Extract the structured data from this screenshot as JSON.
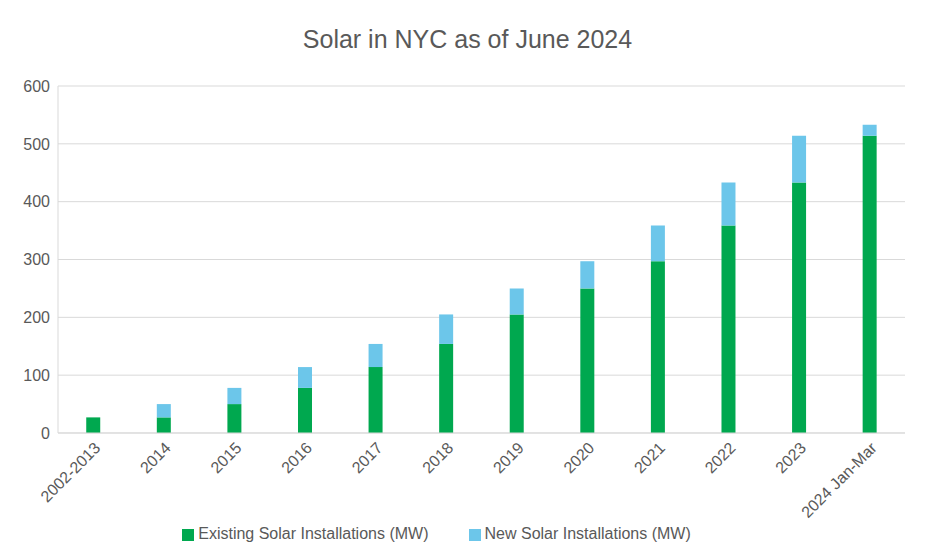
{
  "chart_data": {
    "type": "bar",
    "title": "Solar in NYC as of June 2024",
    "categories": [
      "2002-2013",
      "2014",
      "2015",
      "2016",
      "2017",
      "2018",
      "2019",
      "2020",
      "2021",
      "2022",
      "2023",
      "2024 Jan-Mar"
    ],
    "series": [
      {
        "name": "Existing Solar Installations (MW)",
        "color": "#00a84f",
        "values": [
          27,
          27,
          50,
          78,
          114,
          154,
          205,
          250,
          297,
          359,
          433,
          514
        ]
      },
      {
        "name": "New Solar Installations (MW)",
        "color": "#6cc6ea",
        "values": [
          0,
          23,
          28,
          36,
          40,
          51,
          45,
          47,
          62,
          74,
          81,
          19
        ]
      }
    ],
    "stacked": true,
    "ylim": [
      0,
      600
    ],
    "yticks": [
      0,
      100,
      200,
      300,
      400,
      500,
      600
    ],
    "grid": true,
    "legend": "bottom"
  }
}
